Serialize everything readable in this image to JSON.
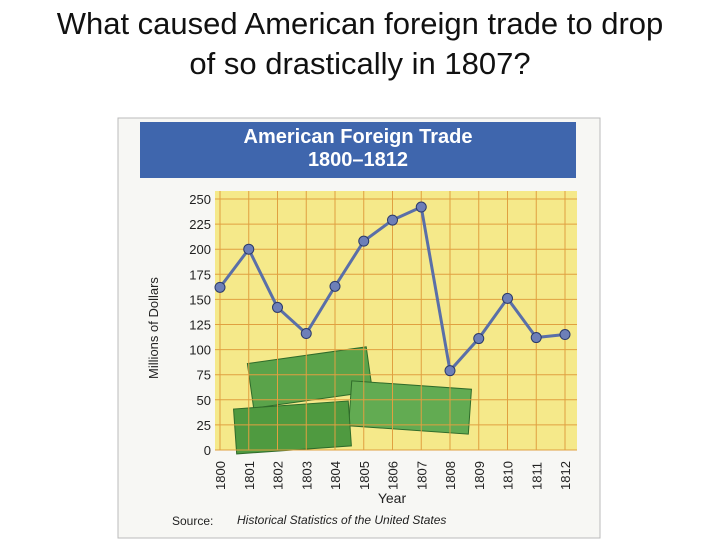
{
  "slide_title": "What caused American foreign trade to drop of so drastically in 1807?",
  "chart_data": {
    "type": "line",
    "title": "American Foreign Trade",
    "subtitle": "1800–1812",
    "categories": [
      "1800",
      "1801",
      "1802",
      "1803",
      "1804",
      "1805",
      "1806",
      "1807",
      "1808",
      "1809",
      "1810",
      "1811",
      "1812"
    ],
    "values": [
      162,
      200,
      142,
      116,
      163,
      208,
      229,
      242,
      79,
      111,
      151,
      112,
      115
    ],
    "color": "#5a6fa8",
    "ylim": [
      0,
      250
    ],
    "yticks": [
      0,
      25,
      50,
      75,
      100,
      125,
      150,
      175,
      200,
      225,
      250
    ],
    "ylabel": "Millions of Dollars",
    "xlabel": "Year",
    "source_prefix": "Source:",
    "source": "Historical Statistics of the United States",
    "grid": true
  }
}
